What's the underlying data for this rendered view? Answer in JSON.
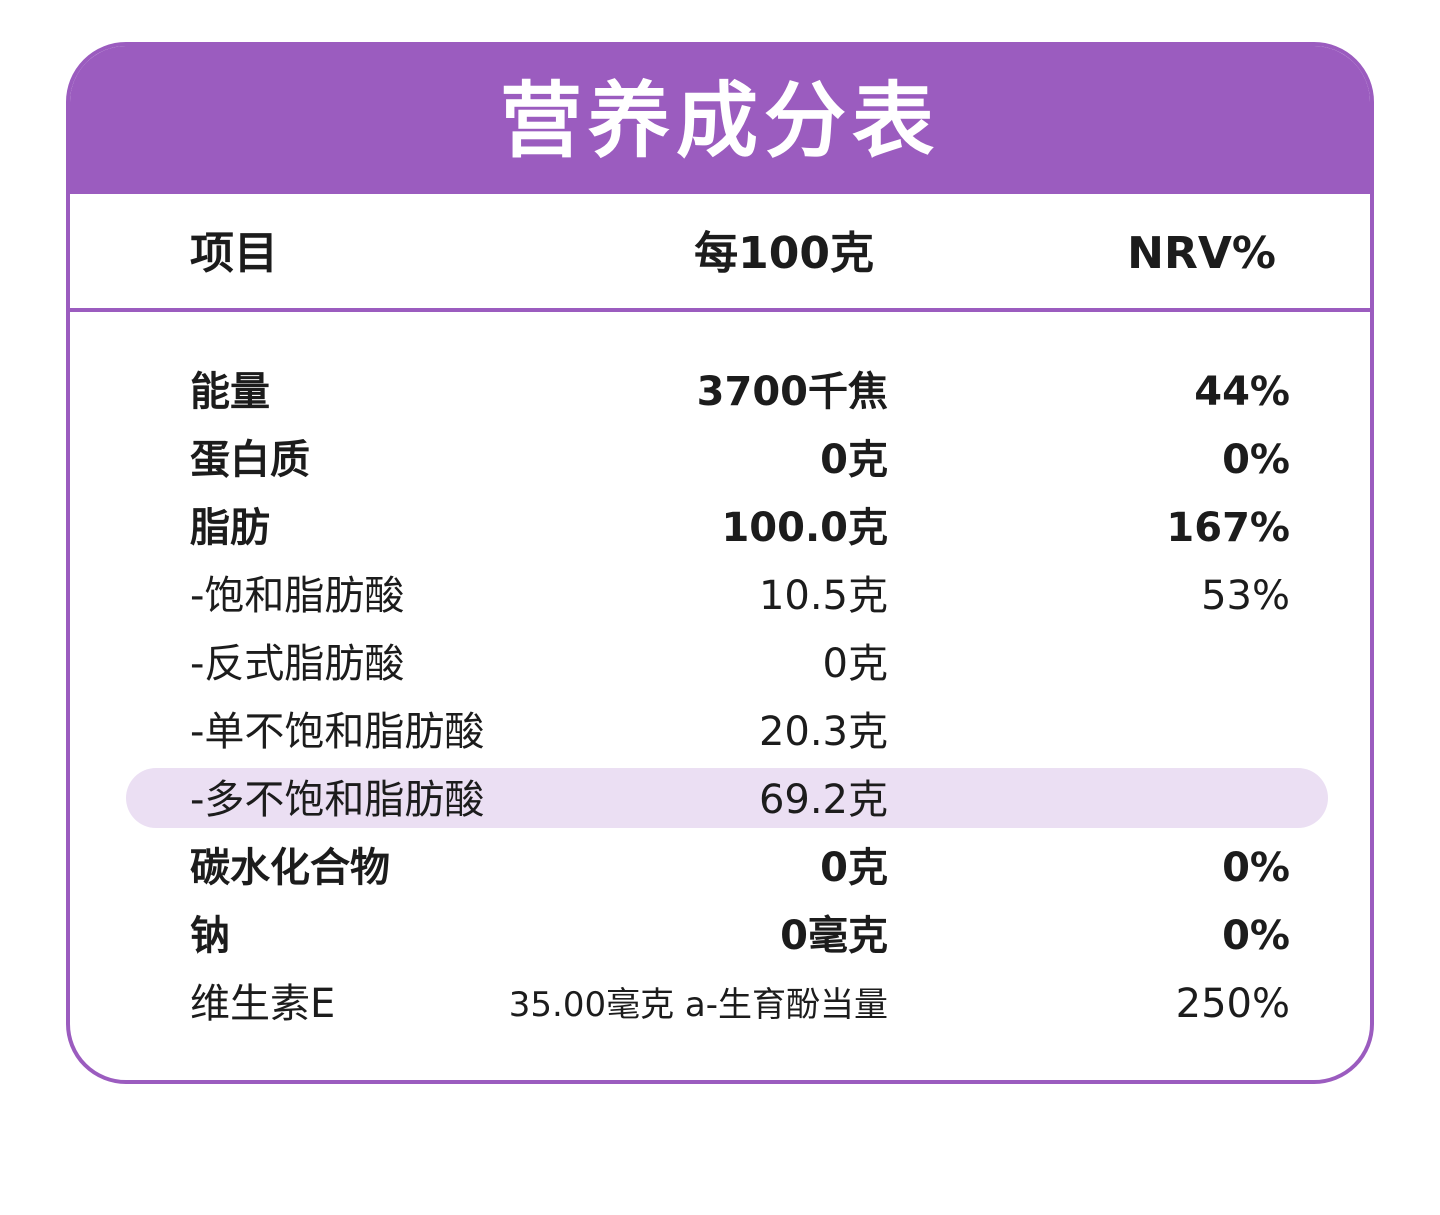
{
  "title": "营养成分表",
  "header": {
    "name": "项目",
    "amount": "每100克",
    "nrv": "NRV%"
  },
  "rows": [
    {
      "name": "能量",
      "amount": "3700千焦",
      "nrv": "44%"
    },
    {
      "name": "蛋白质",
      "amount": "0克",
      "nrv": "0%"
    },
    {
      "name": "脂肪",
      "amount": "100.0克",
      "nrv": "167%"
    },
    {
      "name": "-饱和脂肪酸",
      "amount": "10.5克",
      "nrv": "53%"
    },
    {
      "name": "-反式脂肪酸",
      "amount": "0克",
      "nrv": ""
    },
    {
      "name": "-单不饱和脂肪酸",
      "amount": "20.3克",
      "nrv": ""
    },
    {
      "name": "-多不饱和脂肪酸",
      "amount": "69.2克",
      "nrv": ""
    },
    {
      "name": "碳水化合物",
      "amount": "0克",
      "nrv": "0%"
    },
    {
      "name": "钠",
      "amount": "0毫克",
      "nrv": "0%"
    },
    {
      "name": "维生素E",
      "amount": "35.00毫克 a-生育酚当量",
      "nrv": "250%"
    }
  ],
  "colors": {
    "accent": "#9b5cbf",
    "highlight": "#ebdff3",
    "text": "#1c1c1c"
  }
}
